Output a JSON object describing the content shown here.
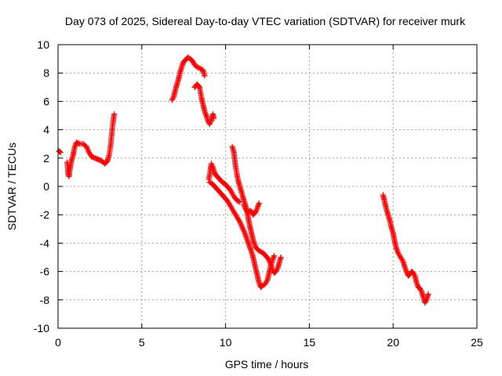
{
  "chart_data": {
    "type": "scatter",
    "title": "Day 073 of 2025, Sidereal Day-to-day VTEC variation (SDTVAR) for receiver murk",
    "xlabel": "GPS time / hours",
    "ylabel": "SDTVAR / TECUs",
    "xlim": [
      0,
      25
    ],
    "ylim": [
      -10,
      10
    ],
    "xticks": [
      "0",
      "5",
      "10",
      "15",
      "20",
      "25"
    ],
    "yticks": [
      "-10",
      "-8",
      "-6",
      "-4",
      "-2",
      "0",
      "2",
      "4",
      "6",
      "8",
      "10"
    ],
    "grid": true,
    "marker": "plus",
    "color": "#ff0000",
    "segments": [
      [
        [
          0.05,
          2.5
        ],
        [
          0.15,
          2.4
        ]
      ],
      [
        [
          0.55,
          1.7
        ],
        [
          0.6,
          0.9
        ],
        [
          0.65,
          0.7
        ],
        [
          0.7,
          1.2
        ],
        [
          0.8,
          1.8
        ],
        [
          0.9,
          2.2
        ],
        [
          1.0,
          2.8
        ],
        [
          1.1,
          3.1
        ],
        [
          1.3,
          3.0
        ],
        [
          1.5,
          3.0
        ],
        [
          1.7,
          2.8
        ],
        [
          1.85,
          2.4
        ],
        [
          2.0,
          2.1
        ],
        [
          2.2,
          2.0
        ],
        [
          2.4,
          1.9
        ],
        [
          2.6,
          1.8
        ],
        [
          2.8,
          1.6
        ],
        [
          2.95,
          1.8
        ],
        [
          3.05,
          2.2
        ],
        [
          3.15,
          3.0
        ],
        [
          3.25,
          4.2
        ],
        [
          3.35,
          5.1
        ]
      ],
      [
        [
          6.8,
          6.1
        ],
        [
          6.9,
          6.3
        ],
        [
          7.0,
          6.8
        ],
        [
          7.1,
          7.2
        ],
        [
          7.2,
          7.6
        ],
        [
          7.3,
          8.1
        ],
        [
          7.4,
          8.5
        ],
        [
          7.5,
          8.8
        ],
        [
          7.6,
          8.9
        ],
        [
          7.75,
          9.1
        ],
        [
          7.9,
          9.0
        ],
        [
          8.05,
          8.8
        ],
        [
          8.2,
          8.5
        ],
        [
          8.35,
          8.4
        ],
        [
          8.5,
          8.3
        ],
        [
          8.65,
          8.2
        ],
        [
          8.75,
          7.8
        ]
      ],
      [
        [
          8.15,
          7.0
        ],
        [
          8.3,
          7.2
        ],
        [
          8.45,
          7.0
        ],
        [
          8.55,
          6.3
        ],
        [
          8.65,
          5.8
        ],
        [
          8.75,
          5.3
        ],
        [
          8.85,
          5.0
        ],
        [
          8.95,
          4.6
        ],
        [
          9.05,
          4.4
        ],
        [
          9.15,
          4.7
        ],
        [
          9.25,
          5.1
        ],
        [
          9.3,
          4.8
        ]
      ],
      [
        [
          9.0,
          0.5
        ],
        [
          9.1,
          1.2
        ],
        [
          9.15,
          1.6
        ],
        [
          9.25,
          1.3
        ],
        [
          9.35,
          0.9
        ],
        [
          9.5,
          0.7
        ],
        [
          9.65,
          0.5
        ],
        [
          9.8,
          0.3
        ],
        [
          9.95,
          0.2
        ],
        [
          10.1,
          0.0
        ],
        [
          10.25,
          -0.2
        ],
        [
          10.4,
          -0.5
        ],
        [
          10.55,
          -0.8
        ],
        [
          10.7,
          -1.0
        ],
        [
          10.85,
          -1.1
        ]
      ],
      [
        [
          9.05,
          0.3
        ],
        [
          9.2,
          0.2
        ],
        [
          9.35,
          0.0
        ],
        [
          9.5,
          -0.2
        ],
        [
          9.65,
          -0.4
        ],
        [
          9.8,
          -0.6
        ],
        [
          9.95,
          -0.8
        ],
        [
          10.1,
          -1.0
        ],
        [
          10.25,
          -1.3
        ],
        [
          10.4,
          -1.6
        ],
        [
          10.55,
          -1.9
        ],
        [
          10.7,
          -2.2
        ],
        [
          10.85,
          -2.5
        ],
        [
          11.0,
          -2.9
        ],
        [
          11.15,
          -3.3
        ],
        [
          11.3,
          -3.8
        ],
        [
          11.45,
          -4.3
        ],
        [
          11.6,
          -4.8
        ],
        [
          11.7,
          -5.3
        ],
        [
          11.8,
          -5.8
        ],
        [
          11.9,
          -6.3
        ],
        [
          12.0,
          -6.8
        ],
        [
          12.1,
          -7.1
        ],
        [
          12.2,
          -7.0
        ],
        [
          12.35,
          -6.9
        ],
        [
          12.5,
          -6.6
        ],
        [
          12.6,
          -6.1
        ],
        [
          12.7,
          -5.6
        ],
        [
          12.8,
          -5.2
        ],
        [
          12.9,
          -4.9
        ]
      ],
      [
        [
          10.4,
          2.8
        ],
        [
          10.5,
          2.4
        ],
        [
          10.6,
          1.4
        ],
        [
          10.7,
          0.7
        ],
        [
          10.8,
          0.2
        ],
        [
          10.9,
          -0.2
        ],
        [
          11.0,
          -0.6
        ],
        [
          11.1,
          -1.0
        ],
        [
          11.25,
          -1.6
        ],
        [
          11.35,
          -2.2
        ],
        [
          11.45,
          -2.8
        ],
        [
          11.55,
          -3.3
        ],
        [
          11.65,
          -3.8
        ],
        [
          11.8,
          -4.3
        ],
        [
          11.95,
          -4.5
        ],
        [
          12.1,
          -4.6
        ],
        [
          12.25,
          -4.7
        ],
        [
          12.4,
          -4.9
        ],
        [
          12.55,
          -5.1
        ],
        [
          12.7,
          -5.5
        ],
        [
          12.8,
          -5.9
        ],
        [
          12.9,
          -6.1
        ],
        [
          13.0,
          -6.0
        ],
        [
          13.1,
          -5.8
        ],
        [
          13.2,
          -5.4
        ],
        [
          13.3,
          -5.0
        ]
      ],
      [
        [
          11.1,
          -1.3
        ],
        [
          11.2,
          -1.6
        ],
        [
          11.35,
          -1.8
        ],
        [
          11.5,
          -1.7
        ],
        [
          11.65,
          -2.0
        ],
        [
          11.8,
          -1.8
        ],
        [
          11.9,
          -1.5
        ],
        [
          12.0,
          -1.2
        ]
      ],
      [
        [
          19.4,
          -0.6
        ],
        [
          19.5,
          -1.1
        ],
        [
          19.6,
          -1.6
        ],
        [
          19.7,
          -2.0
        ],
        [
          19.8,
          -2.4
        ],
        [
          19.9,
          -2.9
        ],
        [
          20.0,
          -3.3
        ],
        [
          20.1,
          -3.9
        ],
        [
          20.2,
          -4.4
        ],
        [
          20.3,
          -4.7
        ],
        [
          20.45,
          -5.0
        ],
        [
          20.6,
          -5.3
        ],
        [
          20.7,
          -5.7
        ],
        [
          20.8,
          -6.0
        ],
        [
          20.9,
          -6.3
        ],
        [
          21.0,
          -6.2
        ],
        [
          21.1,
          -6.0
        ],
        [
          21.2,
          -6.1
        ],
        [
          21.3,
          -6.3
        ],
        [
          21.4,
          -6.8
        ],
        [
          21.5,
          -7.1
        ],
        [
          21.6,
          -7.2
        ],
        [
          21.7,
          -7.4
        ],
        [
          21.8,
          -7.8
        ],
        [
          21.9,
          -8.2
        ],
        [
          22.0,
          -8.0
        ],
        [
          22.1,
          -7.6
        ]
      ]
    ]
  }
}
